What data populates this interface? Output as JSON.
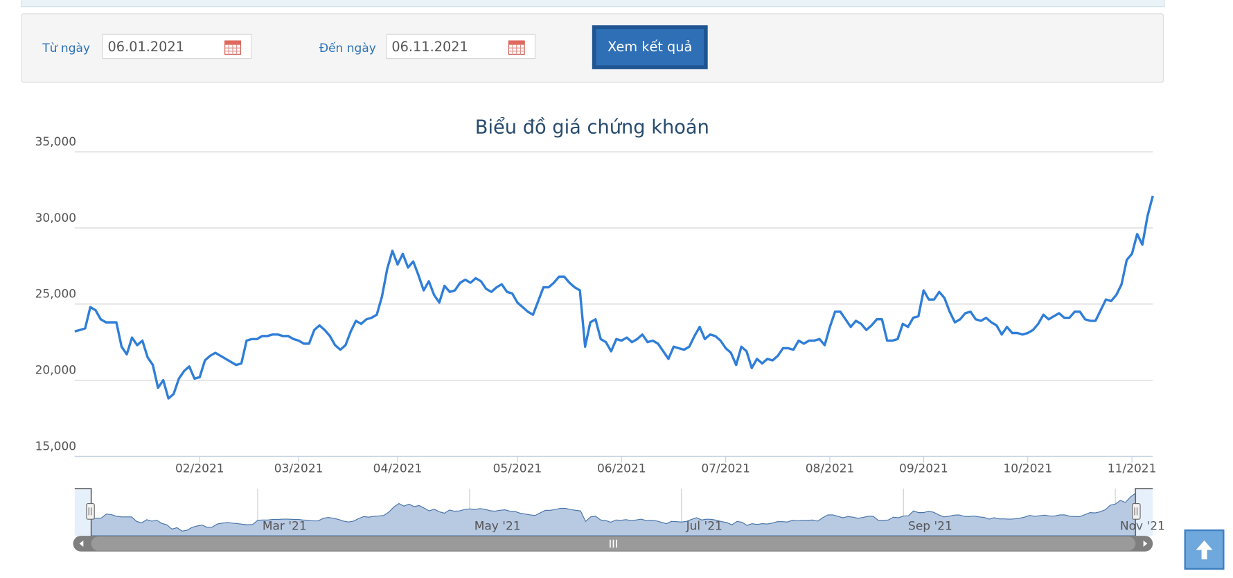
{
  "form": {
    "from_label": "Từ ngày",
    "from_value": "06.01.2021",
    "to_label": "Đến ngày",
    "to_value": "06.11.2021",
    "button": "Xem kết quả"
  },
  "chart_data": {
    "type": "line",
    "title": "Biểu đồ giá chứng khoán",
    "color": "#2f7ed8",
    "grid": true,
    "values": [
      23200,
      23300,
      23400,
      24800,
      24600,
      24000,
      23800,
      23800,
      23800,
      22200,
      21700,
      22800,
      22300,
      22600,
      21500,
      21000,
      19500,
      20000,
      18800,
      19100,
      20100,
      20600,
      20900,
      20100,
      20200,
      21300,
      21600,
      21800,
      21600,
      21400,
      21200,
      21000,
      21100,
      22600,
      22700,
      22700,
      22900,
      22900,
      23000,
      23000,
      22900,
      22900,
      22700,
      22600,
      22400,
      22400,
      23300,
      23600,
      23300,
      22900,
      22300,
      22000,
      22300,
      23200,
      23900,
      23700,
      24000,
      24100,
      24300,
      25500,
      27300,
      28500,
      27600,
      28300,
      27400,
      27800,
      26900,
      25900,
      26500,
      25600,
      25100,
      26200,
      25800,
      25900,
      26400,
      26600,
      26400,
      26700,
      26500,
      26000,
      25800,
      26100,
      26300,
      25800,
      25700,
      25100,
      24800,
      24500,
      24300,
      25200,
      26100,
      26100,
      26400,
      26800,
      26800,
      26400,
      26100,
      25900,
      22200,
      23800,
      24000,
      22700,
      22500,
      21900,
      22700,
      22600,
      22800,
      22500,
      22700,
      23000,
      22500,
      22600,
      22400,
      21900,
      21400,
      22200,
      22100,
      22000,
      22200,
      22900,
      23500,
      22700,
      23000,
      22900,
      22600,
      22100,
      21800,
      21000,
      22200,
      21900,
      20800,
      21400,
      21100,
      21400,
      21300,
      21600,
      22100,
      22100,
      22000,
      22600,
      22400,
      22600,
      22600,
      22700,
      22300,
      23500,
      24500,
      24500,
      24000,
      23500,
      23900,
      23700,
      23300,
      23600,
      24000,
      24000,
      22600,
      22600,
      22700,
      23700,
      23500,
      24100,
      24200,
      25900,
      25300,
      25300,
      25800,
      25400,
      24500,
      23800,
      24000,
      24400,
      24500,
      24000,
      23900,
      24100,
      23800,
      23600,
      23000,
      23500,
      23100,
      23100,
      23000,
      23100,
      23300,
      23700,
      24300,
      24000,
      24200,
      24400,
      24100,
      24100,
      24500,
      24500,
      24000,
      23900,
      23900,
      24600,
      25300,
      25200,
      25600,
      26300,
      27900,
      28300,
      29600,
      28900,
      30800,
      32100
    ],
    "xlim": [
      0,
      207
    ],
    "xticks": [
      {
        "value": 24,
        "label": "02/2021"
      },
      {
        "value": 43,
        "label": "03/2021"
      },
      {
        "value": 62,
        "label": "04/2021"
      },
      {
        "value": 85,
        "label": "05/2021"
      },
      {
        "value": 105,
        "label": "06/2021"
      },
      {
        "value": 125,
        "label": "07/2021"
      },
      {
        "value": 145,
        "label": "08/2021"
      },
      {
        "value": 163,
        "label": "09/2021"
      },
      {
        "value": 183,
        "label": "10/2021"
      },
      {
        "value": 203,
        "label": "11/2021"
      }
    ],
    "ylim": [
      15000,
      35000
    ],
    "yticks": [
      {
        "value": 15000,
        "label": "15,000"
      },
      {
        "value": 20000,
        "label": "20,000"
      },
      {
        "value": 25000,
        "label": "25,000"
      },
      {
        "value": 30000,
        "label": "30,000"
      },
      {
        "value": 35000,
        "label": "35,000"
      }
    ],
    "navigator": {
      "color": "#4572a7",
      "xticks": [
        {
          "value": 33,
          "label": "Mar '21"
        },
        {
          "value": 75,
          "label": "May '21"
        },
        {
          "value": 117,
          "label": "Jul '21"
        },
        {
          "value": 161,
          "label": "Sep '21"
        },
        {
          "value": 203,
          "label": "Nov '21"
        }
      ]
    }
  }
}
